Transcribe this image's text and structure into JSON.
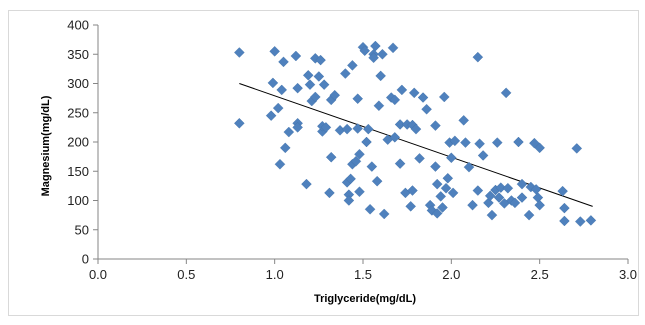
{
  "chart_data": {
    "type": "scatter",
    "xlabel": "Triglyceride(mg/dL)",
    "ylabel": "Magnesium(mg/dL)",
    "xlim": [
      0.0,
      3.0
    ],
    "ylim": [
      0,
      400
    ],
    "x_ticks": [
      "0.0",
      "0.5",
      "1.0",
      "1.5",
      "2.0",
      "2.5",
      "3.0"
    ],
    "y_ticks": [
      "0",
      "50",
      "100",
      "150",
      "200",
      "250",
      "300",
      "350",
      "400"
    ],
    "grid": false,
    "legend": "none",
    "marker": "diamond",
    "marker_color": "#4f81bd",
    "points": [
      [
        0.8,
        353
      ],
      [
        0.8,
        232
      ],
      [
        0.98,
        245
      ],
      [
        0.99,
        301
      ],
      [
        1.0,
        355
      ],
      [
        1.02,
        258
      ],
      [
        1.03,
        162
      ],
      [
        1.04,
        289
      ],
      [
        1.05,
        337
      ],
      [
        1.06,
        190
      ],
      [
        1.08,
        217
      ],
      [
        1.12,
        347
      ],
      [
        1.13,
        292
      ],
      [
        1.13,
        232
      ],
      [
        1.13,
        225
      ],
      [
        1.18,
        128
      ],
      [
        1.19,
        314
      ],
      [
        1.2,
        298
      ],
      [
        1.21,
        270
      ],
      [
        1.23,
        343
      ],
      [
        1.23,
        277
      ],
      [
        1.25,
        312
      ],
      [
        1.26,
        340
      ],
      [
        1.27,
        218
      ],
      [
        1.27,
        227
      ],
      [
        1.28,
        298
      ],
      [
        1.29,
        225
      ],
      [
        1.31,
        113
      ],
      [
        1.32,
        174
      ],
      [
        1.32,
        272
      ],
      [
        1.34,
        280
      ],
      [
        1.37,
        220
      ],
      [
        1.4,
        317
      ],
      [
        1.41,
        222
      ],
      [
        1.41,
        131
      ],
      [
        1.42,
        110
      ],
      [
        1.42,
        100
      ],
      [
        1.43,
        137
      ],
      [
        1.44,
        162
      ],
      [
        1.44,
        331
      ],
      [
        1.46,
        167
      ],
      [
        1.47,
        274
      ],
      [
        1.47,
        223
      ],
      [
        1.48,
        179
      ],
      [
        1.48,
        115
      ],
      [
        1.5,
        362
      ],
      [
        1.51,
        356
      ],
      [
        1.52,
        200
      ],
      [
        1.53,
        222
      ],
      [
        1.54,
        85
      ],
      [
        1.55,
        158
      ],
      [
        1.56,
        350
      ],
      [
        1.56,
        344
      ],
      [
        1.57,
        364
      ],
      [
        1.58,
        133
      ],
      [
        1.59,
        262
      ],
      [
        1.6,
        313
      ],
      [
        1.61,
        350
      ],
      [
        1.62,
        77
      ],
      [
        1.64,
        204
      ],
      [
        1.66,
        276
      ],
      [
        1.67,
        361
      ],
      [
        1.68,
        208
      ],
      [
        1.68,
        272
      ],
      [
        1.71,
        230
      ],
      [
        1.71,
        163
      ],
      [
        1.72,
        289
      ],
      [
        1.74,
        113
      ],
      [
        1.75,
        230
      ],
      [
        1.77,
        90
      ],
      [
        1.78,
        229
      ],
      [
        1.78,
        117
      ],
      [
        1.79,
        284
      ],
      [
        1.8,
        222
      ],
      [
        1.82,
        172
      ],
      [
        1.84,
        276
      ],
      [
        1.86,
        256
      ],
      [
        1.88,
        92
      ],
      [
        1.89,
        83
      ],
      [
        1.91,
        228
      ],
      [
        1.91,
        158
      ],
      [
        1.92,
        128
      ],
      [
        1.92,
        78
      ],
      [
        1.94,
        107
      ],
      [
        1.95,
        88
      ],
      [
        1.96,
        277
      ],
      [
        1.97,
        121
      ],
      [
        1.98,
        138
      ],
      [
        1.99,
        199
      ],
      [
        2.0,
        173
      ],
      [
        2.01,
        113
      ],
      [
        2.02,
        202
      ],
      [
        2.07,
        237
      ],
      [
        2.08,
        199
      ],
      [
        2.1,
        157
      ],
      [
        2.12,
        92
      ],
      [
        2.15,
        345
      ],
      [
        2.15,
        117
      ],
      [
        2.16,
        197
      ],
      [
        2.18,
        177
      ],
      [
        2.21,
        96
      ],
      [
        2.22,
        108
      ],
      [
        2.23,
        75
      ],
      [
        2.25,
        118
      ],
      [
        2.26,
        199
      ],
      [
        2.27,
        105
      ],
      [
        2.28,
        122
      ],
      [
        2.3,
        95
      ],
      [
        2.31,
        284
      ],
      [
        2.32,
        121
      ],
      [
        2.34,
        100
      ],
      [
        2.36,
        96
      ],
      [
        2.38,
        200
      ],
      [
        2.4,
        128
      ],
      [
        2.4,
        105
      ],
      [
        2.44,
        75
      ],
      [
        2.45,
        123
      ],
      [
        2.47,
        198
      ],
      [
        2.48,
        119
      ],
      [
        2.49,
        105
      ],
      [
        2.5,
        92
      ],
      [
        2.5,
        190
      ],
      [
        2.63,
        116
      ],
      [
        2.64,
        65
      ],
      [
        2.64,
        87
      ],
      [
        2.71,
        189
      ],
      [
        2.73,
        64
      ],
      [
        2.79,
        66
      ]
    ],
    "trendline": {
      "type": "linear",
      "x": [
        0.8,
        2.8
      ],
      "y": [
        300,
        90
      ]
    }
  }
}
